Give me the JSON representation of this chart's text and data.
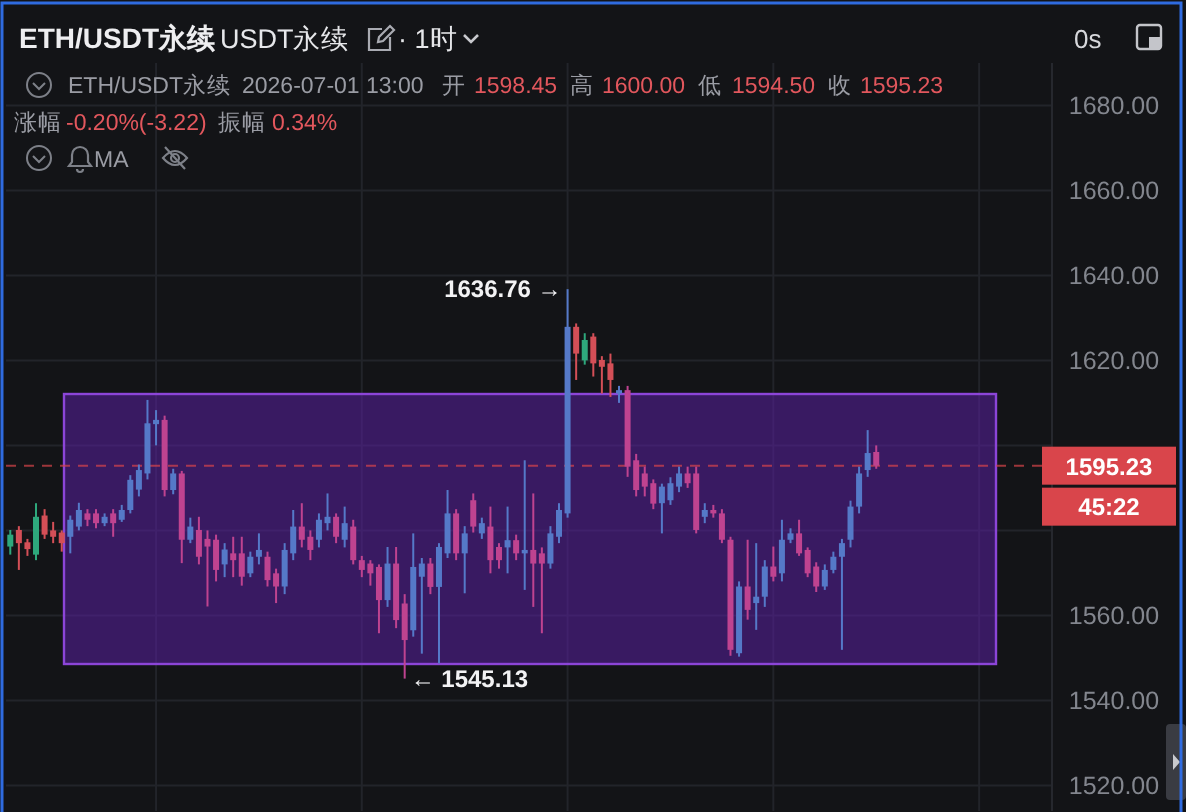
{
  "chart_data": {
    "type": "candlestick",
    "title": "ETH/USDT永续",
    "subtitle": "USDT永续",
    "categories": [
      null,
      null,
      null,
      null,
      null,
      null,
      null,
      null,
      null,
      null,
      null,
      null,
      null,
      null,
      null,
      null,
      null,
      null,
      null,
      null,
      null,
      null,
      null,
      null,
      null,
      null,
      null,
      null,
      null,
      null,
      null,
      null,
      null,
      null,
      null,
      null,
      null,
      null,
      null,
      null,
      null,
      null,
      null,
      null,
      null,
      null,
      null,
      null,
      null,
      null,
      null,
      null,
      null,
      null,
      null,
      null,
      null,
      null,
      null,
      null,
      null,
      null,
      null,
      null,
      null,
      null,
      null,
      null,
      null,
      null,
      null,
      null,
      null,
      null,
      null,
      null,
      null,
      null,
      null,
      null,
      null,
      null,
      null,
      null,
      null,
      null,
      null,
      null,
      null,
      null,
      null,
      null,
      null,
      null,
      null,
      null,
      null,
      null,
      null,
      null,
      null,
      null,
      null,
      null,
      null,
      null,
      null,
      null,
      null,
      null,
      null,
      null,
      null,
      null,
      null,
      null,
      null,
      null,
      null,
      null,
      null,
      null
    ],
    "ohlc": [
      [
        1576.2,
        1580.1,
        1574.3,
        1579.0
      ],
      [
        1580.1,
        1581.0,
        1570.7,
        1577.0
      ],
      [
        1577.2,
        1578.0,
        1574.0,
        1575.6
      ],
      [
        1574.3,
        1586.4,
        1573.0,
        1583.2
      ],
      [
        1583.5,
        1585.0,
        1578.0,
        1579.0
      ],
      [
        1580.0,
        1582.0,
        1577.0,
        1578.5
      ],
      [
        1579.5,
        1580.0,
        1575.0,
        1577.0
      ],
      [
        1578.5,
        1583.5,
        1574.6,
        1582.5
      ],
      [
        1580.9,
        1586.5,
        1580.0,
        1584.8
      ],
      [
        1584.0,
        1585.0,
        1581.0,
        1582.5
      ],
      [
        1584.0,
        1585.0,
        1580.5,
        1581.7
      ],
      [
        1581.7,
        1584.0,
        1581.0,
        1583.2
      ],
      [
        1584.0,
        1585.0,
        1578.5,
        1581.7
      ],
      [
        1582.5,
        1586.0,
        1582.0,
        1584.8
      ],
      [
        1584.8,
        1593.0,
        1584.0,
        1591.9
      ],
      [
        1589.6,
        1595.5,
        1588.0,
        1594.2
      ],
      [
        1593.4,
        1610.7,
        1592.0,
        1605.2
      ],
      [
        1605.0,
        1608.3,
        1600.0,
        1606.0
      ],
      [
        1606.0,
        1607.0,
        1588.0,
        1589.5
      ],
      [
        1589.5,
        1594.5,
        1588.5,
        1593.4
      ],
      [
        1593.4,
        1594.0,
        1572.3,
        1577.8
      ],
      [
        1577.8,
        1583.0,
        1577.0,
        1580.9
      ],
      [
        1580.1,
        1583.2,
        1572.0,
        1573.8
      ],
      [
        1578.0,
        1580.0,
        1562.1,
        1576.2
      ],
      [
        1577.8,
        1579.0,
        1568.0,
        1570.7
      ],
      [
        1572.0,
        1577.0,
        1569.0,
        1575.5
      ],
      [
        1574.6,
        1578.5,
        1569.0,
        1573.0
      ],
      [
        1574.6,
        1578.5,
        1567.0,
        1569.1
      ],
      [
        1569.9,
        1575.0,
        1569.0,
        1573.8
      ],
      [
        1573.8,
        1579.3,
        1572.0,
        1575.4
      ],
      [
        1573.8,
        1575.0,
        1566.8,
        1568.3
      ],
      [
        1569.9,
        1571.0,
        1562.9,
        1566.8
      ],
      [
        1566.8,
        1577.0,
        1565.0,
        1575.4
      ],
      [
        1574.6,
        1584.8,
        1573.0,
        1580.9
      ],
      [
        1580.9,
        1586.4,
        1576.0,
        1577.8
      ],
      [
        1578.5,
        1580.0,
        1573.0,
        1575.4
      ],
      [
        1577.8,
        1584.0,
        1576.0,
        1582.5
      ],
      [
        1581.7,
        1588.7,
        1580.0,
        1583.2
      ],
      [
        1583.2,
        1584.0,
        1577.0,
        1578.5
      ],
      [
        1577.8,
        1585.6,
        1576.0,
        1581.7
      ],
      [
        1580.9,
        1582.5,
        1572.0,
        1573.0
      ],
      [
        1573.0,
        1574.0,
        1569.0,
        1570.7
      ],
      [
        1572.2,
        1573.0,
        1567.0,
        1569.9
      ],
      [
        1571.4,
        1572.0,
        1555.8,
        1563.6
      ],
      [
        1563.6,
        1576.1,
        1562.0,
        1572.2
      ],
      [
        1572.2,
        1576.1,
        1557.0,
        1558.9
      ],
      [
        1562.8,
        1565.0,
        1545.13,
        1554.2
      ],
      [
        1556.5,
        1579.3,
        1555.0,
        1571.4
      ],
      [
        1569.1,
        1573.5,
        1551.0,
        1572.2
      ],
      [
        1572.2,
        1573.5,
        1565.0,
        1566.7
      ],
      [
        1566.7,
        1577.0,
        1548.7,
        1576.1
      ],
      [
        1574.6,
        1589.5,
        1573.5,
        1584.0
      ],
      [
        1584.0,
        1585.0,
        1573.0,
        1574.6
      ],
      [
        1574.6,
        1581.0,
        1565.2,
        1579.3
      ],
      [
        1587.1,
        1588.7,
        1579.5,
        1580.9
      ],
      [
        1579.3,
        1583.0,
        1578.0,
        1581.7
      ],
      [
        1580.9,
        1585.6,
        1569.9,
        1573.0
      ],
      [
        1576.1,
        1577.0,
        1571.0,
        1573.0
      ],
      [
        1576.0,
        1585.6,
        1569.9,
        1577.7
      ],
      [
        1577.7,
        1579.0,
        1573.0,
        1574.6
      ],
      [
        1574.6,
        1596.5,
        1566.0,
        1575.4
      ],
      [
        1575.4,
        1588.7,
        1562.0,
        1572.2
      ],
      [
        1574.6,
        1576.0,
        1555.8,
        1572.2
      ],
      [
        1572.2,
        1581.0,
        1571.0,
        1579.3
      ],
      [
        1578.5,
        1586.4,
        1577.0,
        1584.8
      ],
      [
        1584.0,
        1636.76,
        1583.0,
        1627.9
      ],
      [
        1627.9,
        1628.7,
        1615.4,
        1621.6
      ],
      [
        1620.0,
        1626.4,
        1619.0,
        1624.8
      ],
      [
        1625.6,
        1626.4,
        1616.2,
        1619.3
      ],
      [
        1620.1,
        1621.0,
        1612.2,
        1618.5
      ],
      [
        1619.3,
        1621.6,
        1611.4,
        1615.4
      ],
      [
        1612.2,
        1614.0,
        1610.0,
        1613.0
      ],
      [
        1613.0,
        1614.0,
        1592.6,
        1595.0
      ],
      [
        1596.5,
        1598.0,
        1588.0,
        1589.5
      ],
      [
        1593.4,
        1595.0,
        1588.0,
        1590.3
      ],
      [
        1591.1,
        1592.0,
        1585.0,
        1586.3
      ],
      [
        1586.4,
        1591.0,
        1579.3,
        1590.3
      ],
      [
        1587.1,
        1592.5,
        1586.0,
        1591.1
      ],
      [
        1590.3,
        1595.0,
        1589.0,
        1593.4
      ],
      [
        1593.4,
        1595.0,
        1590.0,
        1591.1
      ],
      [
        1593.4,
        1595.0,
        1579.3,
        1580.1
      ],
      [
        1583.2,
        1586.4,
        1581.7,
        1584.8
      ],
      [
        1584.8,
        1586.0,
        1583.0,
        1584.0
      ],
      [
        1584.0,
        1585.0,
        1577.0,
        1577.8
      ],
      [
        1577.8,
        1578.5,
        1550.5,
        1551.9
      ],
      [
        1551.1,
        1568.0,
        1550.3,
        1566.8
      ],
      [
        1566.8,
        1577.8,
        1559.0,
        1561.3
      ],
      [
        1562.9,
        1577.0,
        1556.6,
        1564.4
      ],
      [
        1564.4,
        1573.0,
        1562.0,
        1571.5
      ],
      [
        1571.5,
        1576.2,
        1568.0,
        1569.1
      ],
      [
        1569.9,
        1582.5,
        1568.0,
        1577.8
      ],
      [
        1577.8,
        1580.5,
        1577.0,
        1579.3
      ],
      [
        1579.3,
        1582.5,
        1574.0,
        1574.6
      ],
      [
        1575.4,
        1576.0,
        1569.0,
        1569.9
      ],
      [
        1571.5,
        1572.5,
        1565.5,
        1566.8
      ],
      [
        1566.8,
        1572.0,
        1566.0,
        1570.7
      ],
      [
        1570.7,
        1575.0,
        1569.9,
        1573.8
      ],
      [
        1573.8,
        1578.0,
        1551.9,
        1577.0
      ],
      [
        1577.8,
        1587.0,
        1576.0,
        1585.6
      ],
      [
        1585.6,
        1595.0,
        1584.0,
        1593.4
      ],
      [
        1594.2,
        1603.6,
        1592.6,
        1598.2
      ],
      [
        1598.45,
        1600.0,
        1594.5,
        1595.23
      ],
      null,
      null,
      null,
      null,
      null,
      null,
      null,
      null,
      null,
      null,
      null,
      null,
      null,
      null,
      null,
      null,
      null,
      null,
      null,
      null
    ],
    "colors": [
      "#2ea87c",
      "#d44f57",
      "#d44f57",
      "#2ea87c",
      "#d44f57",
      "#d44f57",
      "#d44f57",
      "#5579c8",
      "#5579c8",
      "#bf4390",
      "#bf4390",
      "#5579c8",
      "#bf4390",
      "#5579c8",
      "#5579c8",
      "#5579c8",
      "#5579c8",
      "#5579c8",
      "#bf4390",
      "#5579c8",
      "#bf4390",
      "#5579c8",
      "#bf4390",
      "#bf4390",
      "#bf4390",
      "#5579c8",
      "#bf4390",
      "#bf4390",
      "#5579c8",
      "#5579c8",
      "#bf4390",
      "#bf4390",
      "#5579c8",
      "#5579c8",
      "#bf4390",
      "#bf4390",
      "#5579c8",
      "#5579c8",
      "#bf4390",
      "#5579c8",
      "#bf4390",
      "#bf4390",
      "#bf4390",
      "#bf4390",
      "#5579c8",
      "#bf4390",
      "#bf4390",
      "#5579c8",
      "#5579c8",
      "#bf4390",
      "#5579c8",
      "#5579c8",
      "#bf4390",
      "#5579c8",
      "#bf4390",
      "#5579c8",
      "#bf4390",
      "#bf4390",
      "#5579c8",
      "#bf4390",
      "#5579c8",
      "#bf4390",
      "#bf4390",
      "#5579c8",
      "#5579c8",
      "#5579c8",
      "#d44f57",
      "#2ea87c",
      "#d44f57",
      "#d44f57",
      "#d44f57",
      "#5579c8",
      "#bf4390",
      "#bf4390",
      "#bf4390",
      "#bf4390",
      "#5579c8",
      "#5579c8",
      "#5579c8",
      "#bf4390",
      "#bf4390",
      "#5579c8",
      "#bf4390",
      "#bf4390",
      "#bf4390",
      "#5579c8",
      "#bf4390",
      "#5579c8",
      "#5579c8",
      "#bf4390",
      "#5579c8",
      "#5579c8",
      "#bf4390",
      "#bf4390",
      "#bf4390",
      "#5579c8",
      "#5579c8",
      "#5579c8",
      "#5579c8",
      "#5579c8",
      "#5579c8",
      "#bf4390",
      null,
      null,
      null,
      null,
      null,
      null,
      null,
      null,
      null,
      null,
      null,
      null,
      null,
      null,
      null,
      null,
      null,
      null,
      null,
      null
    ],
    "ylim": [
      1514,
      1690
    ],
    "yticks": [
      {
        "value": 1520,
        "label": "1520.00"
      },
      {
        "value": 1540,
        "label": "1540.00"
      },
      {
        "value": 1560,
        "label": "1560.00"
      },
      {
        "value": 1580,
        "label": null
      },
      {
        "value": 1600,
        "label": null
      },
      {
        "value": 1620,
        "label": "1620.00"
      },
      {
        "value": 1640,
        "label": "1640.00"
      },
      {
        "value": 1660,
        "label": "1660.00"
      },
      {
        "value": 1680,
        "label": "1680.00"
      }
    ],
    "grid": true,
    "tick_labels": "y",
    "ref_lines": [
      {
        "axis": "y",
        "value": 1595.23,
        "label": "1595.23",
        "color": "#d9454b",
        "line_style": "dashed"
      }
    ],
    "annotations": [
      "1636.76 →",
      "← 1545.13",
      "· 1时",
      "0s",
      "ETH/USDT永续",
      "2026-07-01 13:00",
      "开",
      "1598.45",
      "高",
      "1600.00",
      "低",
      "1594.50",
      "收",
      "1595.23",
      "涨幅",
      "-0.20%(-3.22)",
      "振幅",
      "0.34%",
      "MA",
      "45:22"
    ]
  }
}
